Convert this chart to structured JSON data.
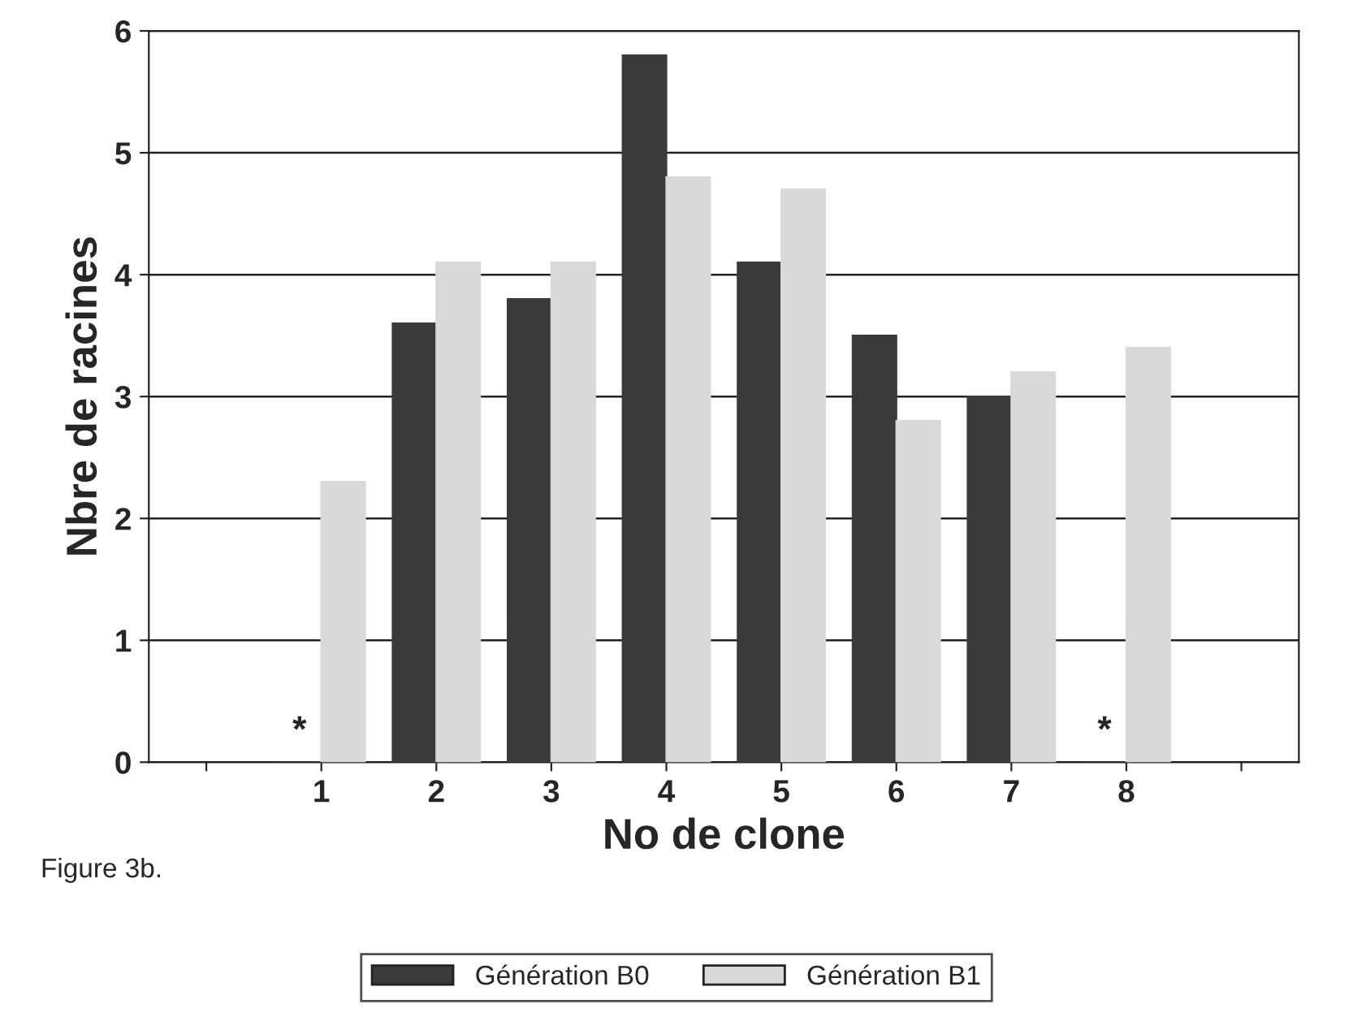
{
  "chart_data": {
    "type": "bar",
    "xlabel": "No de clone",
    "ylabel": "Nbre de racines",
    "categories": [
      null,
      "1",
      "2",
      "3",
      "4",
      "5",
      "6",
      "7",
      "8",
      null
    ],
    "series": [
      {
        "name": "Génération B0",
        "color": "#3a3a3a",
        "values": [
          null,
          0,
          3.6,
          3.8,
          5.8,
          4.1,
          3.5,
          3.0,
          0,
          null
        ]
      },
      {
        "name": "Génération B1",
        "color": "#d9d9d9",
        "values": [
          null,
          2.3,
          4.1,
          4.1,
          4.8,
          4.7,
          2.8,
          3.2,
          3.4,
          null
        ]
      }
    ],
    "ylim": [
      0,
      6
    ],
    "yticks": [
      0,
      1,
      2,
      3,
      4,
      5,
      6
    ],
    "grid": "y",
    "legend": "bottom",
    "annotations": [
      {
        "text": "*",
        "x": "1",
        "y": 0
      },
      {
        "text": "*",
        "x": "8",
        "y": 0
      },
      "Figure 3b."
    ]
  }
}
